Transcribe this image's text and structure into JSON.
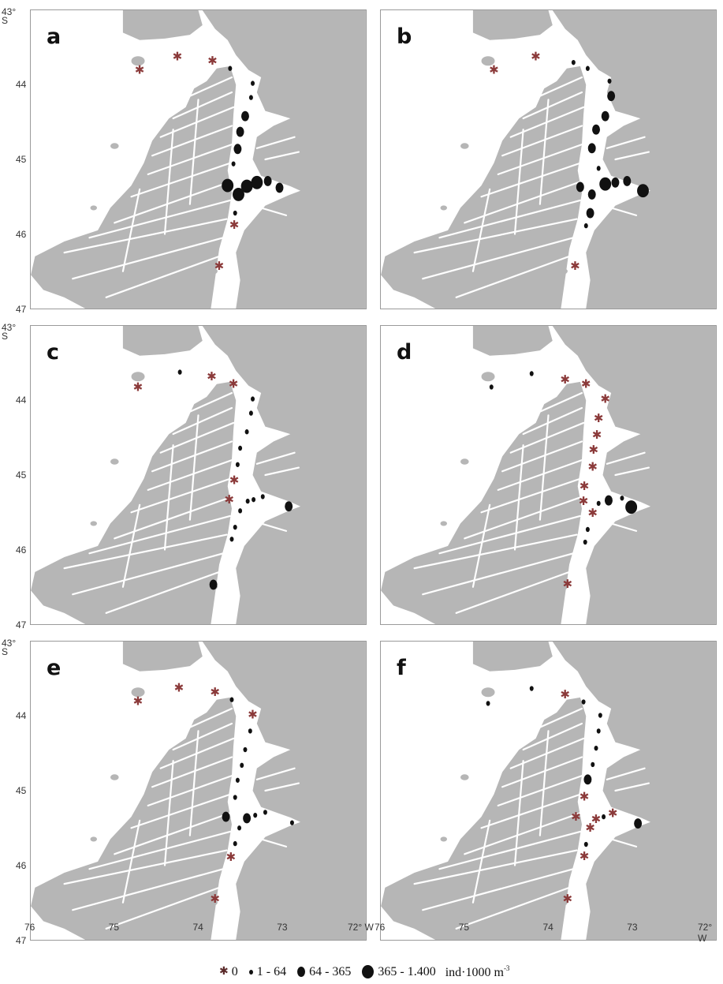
{
  "figure": {
    "panels": [
      {
        "label": "a",
        "stations": [
          {
            "lon": 74.7,
            "lat": 43.8,
            "cls": 0
          },
          {
            "lon": 74.25,
            "lat": 43.62,
            "cls": 0
          },
          {
            "lon": 73.83,
            "lat": 43.68,
            "cls": 0
          },
          {
            "lon": 73.62,
            "lat": 43.78,
            "cls": 1
          },
          {
            "lon": 73.35,
            "lat": 43.98,
            "cls": 1
          },
          {
            "lon": 73.37,
            "lat": 44.17,
            "cls": 1
          },
          {
            "lon": 73.44,
            "lat": 44.42,
            "cls": 2
          },
          {
            "lon": 73.5,
            "lat": 44.63,
            "cls": 2
          },
          {
            "lon": 73.53,
            "lat": 44.86,
            "cls": 2
          },
          {
            "lon": 73.58,
            "lat": 45.06,
            "cls": 1
          },
          {
            "lon": 73.65,
            "lat": 45.35,
            "cls": 3
          },
          {
            "lon": 73.52,
            "lat": 45.47,
            "cls": 3
          },
          {
            "lon": 73.42,
            "lat": 45.36,
            "cls": 3
          },
          {
            "lon": 73.3,
            "lat": 45.31,
            "cls": 3
          },
          {
            "lon": 73.17,
            "lat": 45.29,
            "cls": 2
          },
          {
            "lon": 73.03,
            "lat": 45.38,
            "cls": 2
          },
          {
            "lon": 73.56,
            "lat": 45.72,
            "cls": 1
          },
          {
            "lon": 73.57,
            "lat": 45.88,
            "cls": 0
          },
          {
            "lon": 73.75,
            "lat": 46.43,
            "cls": 0
          }
        ]
      },
      {
        "label": "b",
        "stations": [
          {
            "lon": 74.65,
            "lat": 43.8,
            "cls": 0
          },
          {
            "lon": 74.15,
            "lat": 43.62,
            "cls": 0
          },
          {
            "lon": 73.7,
            "lat": 43.7,
            "cls": 1
          },
          {
            "lon": 73.53,
            "lat": 43.78,
            "cls": 1
          },
          {
            "lon": 73.27,
            "lat": 43.95,
            "cls": 1
          },
          {
            "lon": 73.25,
            "lat": 44.15,
            "cls": 2
          },
          {
            "lon": 73.32,
            "lat": 44.42,
            "cls": 2
          },
          {
            "lon": 73.43,
            "lat": 44.6,
            "cls": 2
          },
          {
            "lon": 73.48,
            "lat": 44.85,
            "cls": 2
          },
          {
            "lon": 73.4,
            "lat": 45.12,
            "cls": 1
          },
          {
            "lon": 73.62,
            "lat": 45.37,
            "cls": 2
          },
          {
            "lon": 73.48,
            "lat": 45.47,
            "cls": 2
          },
          {
            "lon": 73.32,
            "lat": 45.33,
            "cls": 3
          },
          {
            "lon": 73.2,
            "lat": 45.31,
            "cls": 2
          },
          {
            "lon": 73.06,
            "lat": 45.29,
            "cls": 2
          },
          {
            "lon": 72.87,
            "lat": 45.42,
            "cls": 3
          },
          {
            "lon": 73.5,
            "lat": 45.72,
            "cls": 2
          },
          {
            "lon": 73.55,
            "lat": 45.89,
            "cls": 1
          },
          {
            "lon": 73.68,
            "lat": 46.43,
            "cls": 0
          }
        ]
      },
      {
        "label": "c",
        "stations": [
          {
            "lon": 74.72,
            "lat": 43.82,
            "cls": 0
          },
          {
            "lon": 74.22,
            "lat": 43.62,
            "cls": 1
          },
          {
            "lon": 73.84,
            "lat": 43.68,
            "cls": 0
          },
          {
            "lon": 73.58,
            "lat": 43.78,
            "cls": 0
          },
          {
            "lon": 73.35,
            "lat": 43.98,
            "cls": 1
          },
          {
            "lon": 73.37,
            "lat": 44.17,
            "cls": 1
          },
          {
            "lon": 73.42,
            "lat": 44.42,
            "cls": 1
          },
          {
            "lon": 73.5,
            "lat": 44.64,
            "cls": 1
          },
          {
            "lon": 73.53,
            "lat": 44.86,
            "cls": 1
          },
          {
            "lon": 73.57,
            "lat": 45.07,
            "cls": 0
          },
          {
            "lon": 73.63,
            "lat": 45.33,
            "cls": 0
          },
          {
            "lon": 73.5,
            "lat": 45.48,
            "cls": 1
          },
          {
            "lon": 73.41,
            "lat": 45.35,
            "cls": 1
          },
          {
            "lon": 73.34,
            "lat": 45.33,
            "cls": 1
          },
          {
            "lon": 73.23,
            "lat": 45.29,
            "cls": 1
          },
          {
            "lon": 72.92,
            "lat": 45.42,
            "cls": 2
          },
          {
            "lon": 73.56,
            "lat": 45.7,
            "cls": 1
          },
          {
            "lon": 73.6,
            "lat": 45.86,
            "cls": 1
          },
          {
            "lon": 73.82,
            "lat": 46.47,
            "cls": 2
          }
        ]
      },
      {
        "label": "d",
        "stations": [
          {
            "lon": 74.68,
            "lat": 43.82,
            "cls": 1
          },
          {
            "lon": 74.2,
            "lat": 43.64,
            "cls": 1
          },
          {
            "lon": 73.8,
            "lat": 43.72,
            "cls": 0
          },
          {
            "lon": 73.55,
            "lat": 43.78,
            "cls": 0
          },
          {
            "lon": 73.32,
            "lat": 43.98,
            "cls": 0
          },
          {
            "lon": 73.4,
            "lat": 44.24,
            "cls": 0
          },
          {
            "lon": 73.42,
            "lat": 44.46,
            "cls": 0
          },
          {
            "lon": 73.46,
            "lat": 44.66,
            "cls": 0
          },
          {
            "lon": 73.47,
            "lat": 44.89,
            "cls": 0
          },
          {
            "lon": 73.57,
            "lat": 45.15,
            "cls": 0
          },
          {
            "lon": 73.58,
            "lat": 45.35,
            "cls": 0
          },
          {
            "lon": 73.47,
            "lat": 45.51,
            "cls": 0
          },
          {
            "lon": 73.4,
            "lat": 45.38,
            "cls": 1
          },
          {
            "lon": 73.28,
            "lat": 45.34,
            "cls": 2
          },
          {
            "lon": 73.12,
            "lat": 45.31,
            "cls": 1
          },
          {
            "lon": 73.01,
            "lat": 45.43,
            "cls": 3
          },
          {
            "lon": 73.53,
            "lat": 45.73,
            "cls": 1
          },
          {
            "lon": 73.56,
            "lat": 45.9,
            "cls": 1
          },
          {
            "lon": 73.77,
            "lat": 46.46,
            "cls": 0
          }
        ]
      },
      {
        "label": "e",
        "stations": [
          {
            "lon": 74.72,
            "lat": 43.8,
            "cls": 0
          },
          {
            "lon": 74.23,
            "lat": 43.62,
            "cls": 0
          },
          {
            "lon": 73.8,
            "lat": 43.68,
            "cls": 0
          },
          {
            "lon": 73.6,
            "lat": 43.78,
            "cls": 1
          },
          {
            "lon": 73.35,
            "lat": 43.98,
            "cls": 0
          },
          {
            "lon": 73.38,
            "lat": 44.2,
            "cls": 1
          },
          {
            "lon": 73.44,
            "lat": 44.45,
            "cls": 1
          },
          {
            "lon": 73.48,
            "lat": 44.66,
            "cls": 1
          },
          {
            "lon": 73.53,
            "lat": 44.86,
            "cls": 1
          },
          {
            "lon": 73.56,
            "lat": 45.09,
            "cls": 1
          },
          {
            "lon": 73.67,
            "lat": 45.35,
            "cls": 2
          },
          {
            "lon": 73.51,
            "lat": 45.5,
            "cls": 1
          },
          {
            "lon": 73.42,
            "lat": 45.37,
            "cls": 2
          },
          {
            "lon": 73.32,
            "lat": 45.33,
            "cls": 1
          },
          {
            "lon": 73.2,
            "lat": 45.29,
            "cls": 1
          },
          {
            "lon": 72.88,
            "lat": 45.43,
            "cls": 1
          },
          {
            "lon": 73.56,
            "lat": 45.71,
            "cls": 1
          },
          {
            "lon": 73.61,
            "lat": 45.89,
            "cls": 0
          },
          {
            "lon": 73.8,
            "lat": 46.45,
            "cls": 0
          }
        ]
      },
      {
        "label": "f",
        "stations": [
          {
            "lon": 74.72,
            "lat": 43.83,
            "cls": 1
          },
          {
            "lon": 74.2,
            "lat": 43.63,
            "cls": 1
          },
          {
            "lon": 73.8,
            "lat": 43.71,
            "cls": 0
          },
          {
            "lon": 73.58,
            "lat": 43.81,
            "cls": 1
          },
          {
            "lon": 73.38,
            "lat": 43.99,
            "cls": 1
          },
          {
            "lon": 73.4,
            "lat": 44.2,
            "cls": 1
          },
          {
            "lon": 73.43,
            "lat": 44.43,
            "cls": 1
          },
          {
            "lon": 73.47,
            "lat": 44.65,
            "cls": 1
          },
          {
            "lon": 73.53,
            "lat": 44.85,
            "cls": 2
          },
          {
            "lon": 73.57,
            "lat": 45.08,
            "cls": 0
          },
          {
            "lon": 73.67,
            "lat": 45.35,
            "cls": 0
          },
          {
            "lon": 73.5,
            "lat": 45.5,
            "cls": 0
          },
          {
            "lon": 73.43,
            "lat": 45.38,
            "cls": 0
          },
          {
            "lon": 73.34,
            "lat": 45.35,
            "cls": 1
          },
          {
            "lon": 73.23,
            "lat": 45.3,
            "cls": 0
          },
          {
            "lon": 72.93,
            "lat": 45.44,
            "cls": 2
          },
          {
            "lon": 73.55,
            "lat": 45.72,
            "cls": 1
          },
          {
            "lon": 73.57,
            "lat": 45.88,
            "cls": 0
          },
          {
            "lon": 73.77,
            "lat": 46.45,
            "cls": 0
          }
        ]
      }
    ],
    "y_ticks": [
      "43°\nS",
      "44",
      "45",
      "46",
      "47"
    ],
    "y_tick_values": [
      43,
      44,
      45,
      46,
      47
    ],
    "x_ticks": [
      "76",
      "75",
      "74",
      "73",
      "72° W"
    ],
    "x_tick_values": [
      76,
      75,
      74,
      73,
      72
    ],
    "legend": {
      "zero_label": "0",
      "small_label": "1 - 64",
      "medium_label": "64 - 365",
      "large_label": "365 - 1.400",
      "unit": "ind·1000 m",
      "unit_sup": "-3"
    },
    "colors": {
      "land": "#b6b6b6",
      "water": "#ffffff",
      "dot": "#111111",
      "star": "#8b3a3a",
      "frame": "#9a9a9a"
    }
  }
}
